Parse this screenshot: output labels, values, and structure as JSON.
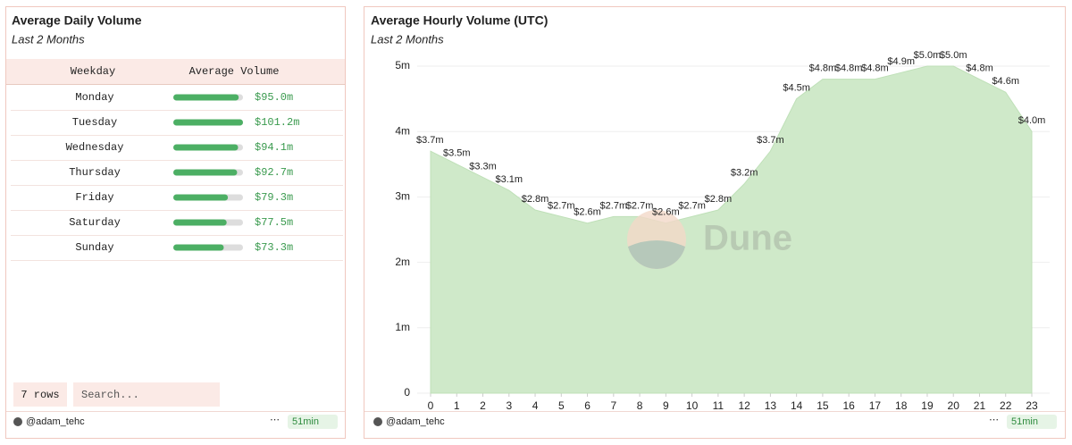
{
  "chart_data": [
    {
      "type": "table-bar",
      "title": "Average Daily Volume",
      "subtitle": "Last 2 Months",
      "columns": [
        "Weekday",
        "Average Volume"
      ],
      "categories": [
        "Monday",
        "Tuesday",
        "Wednesday",
        "Thursday",
        "Friday",
        "Saturday",
        "Sunday"
      ],
      "values": [
        95.0,
        101.2,
        94.1,
        92.7,
        79.3,
        77.5,
        73.3
      ],
      "value_labels": [
        "$95.0m",
        "$101.2m",
        "$94.1m",
        "$92.7m",
        "$79.3m",
        "$77.5m",
        "$73.3m"
      ],
      "color": "#4caf64"
    },
    {
      "type": "area",
      "title": "Average Hourly Volume (UTC)",
      "subtitle": "Last 2 Months",
      "x": [
        0,
        1,
        2,
        3,
        4,
        5,
        6,
        7,
        8,
        9,
        10,
        11,
        12,
        13,
        14,
        15,
        16,
        17,
        18,
        19,
        20,
        21,
        22,
        23
      ],
      "values": [
        3.7,
        3.5,
        3.3,
        3.1,
        2.8,
        2.7,
        2.6,
        2.7,
        2.7,
        2.6,
        2.7,
        2.8,
        3.2,
        3.7,
        4.5,
        4.8,
        4.8,
        4.8,
        4.9,
        5.0,
        5.0,
        4.8,
        4.6,
        4.0
      ],
      "value_labels": [
        "$3.7m",
        "$3.5m",
        "$3.3m",
        "$3.1m",
        "$2.8m",
        "$2.7m",
        "$2.6m",
        "$2.7m",
        "$2.7m",
        "$2.6m",
        "$2.7m",
        "$2.8m",
        "$3.2m",
        "$3.7m",
        "$4.5m",
        "$4.8m",
        "$4.8m",
        "$4.8m",
        "$4.9m",
        "$5.0m",
        "$5.0m",
        "$4.8m",
        "$4.6m",
        "$4.0m"
      ],
      "color": "#cfe9c9",
      "xlim": [
        0,
        23
      ],
      "xticks": [
        0,
        1,
        2,
        3,
        4,
        5,
        6,
        7,
        8,
        9,
        10,
        11,
        12,
        13,
        14,
        15,
        16,
        17,
        18,
        19,
        20,
        21,
        22,
        23
      ],
      "ylim": [
        0,
        5
      ],
      "yticks": [
        0,
        {
          "value": 1,
          "label": "1m"
        },
        {
          "value": 2,
          "label": "2m"
        },
        {
          "value": 3,
          "label": "3m"
        },
        {
          "value": 4,
          "label": "4m"
        },
        {
          "value": 5,
          "label": "5m"
        }
      ],
      "grid": true,
      "watermark": "Dune"
    }
  ],
  "table_footer": {
    "row_count": "7 rows",
    "search_placeholder": "Search..."
  },
  "footers": [
    {
      "author": "@adam_tehc",
      "age": "51min"
    },
    {
      "author": "@adam_tehc",
      "age": "51min"
    }
  ]
}
